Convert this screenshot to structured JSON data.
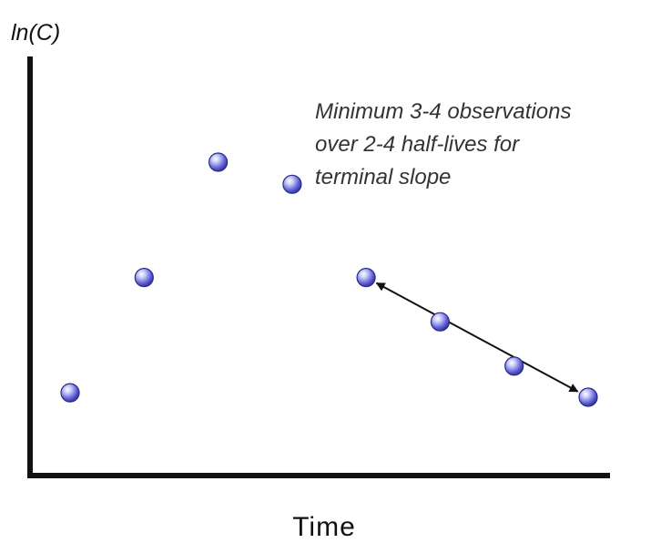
{
  "chart_data": {
    "type": "scatter",
    "title": "",
    "xlabel": "Time",
    "ylabel": "ln(C)",
    "x_ticks": "none",
    "y_ticks": "none",
    "grid": false,
    "points": [
      {
        "x": 1,
        "y": 1.8
      },
      {
        "x": 2,
        "y": 4.4
      },
      {
        "x": 3,
        "y": 7.0
      },
      {
        "x": 4,
        "y": 6.5
      },
      {
        "x": 5,
        "y": 4.4
      },
      {
        "x": 6,
        "y": 3.4
      },
      {
        "x": 7,
        "y": 2.4
      },
      {
        "x": 8,
        "y": 1.7
      }
    ],
    "annotation": {
      "lines": [
        "Minimum 3-4 observations",
        "over 2-4 half-lives for",
        "terminal slope"
      ],
      "arrow": {
        "from_point": 5,
        "to_point": 8,
        "double_headed": true
      }
    },
    "marker_color": "#5a5ad2",
    "arrow_color": "#111111"
  }
}
